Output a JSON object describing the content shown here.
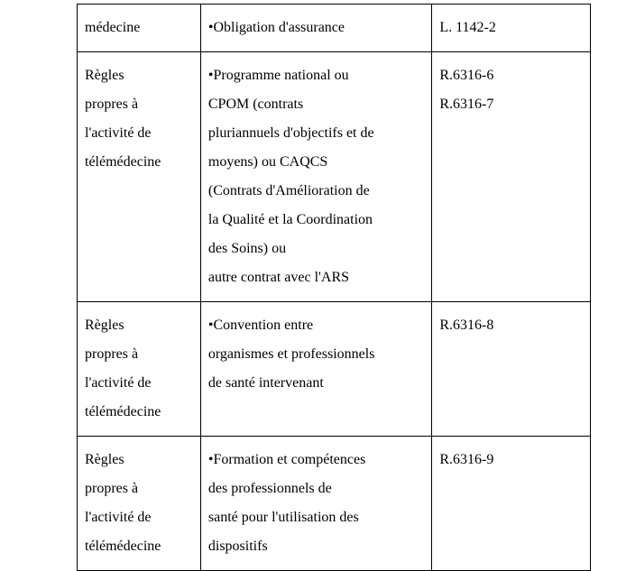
{
  "table": {
    "rows": [
      {
        "col1": "médecine",
        "col2_bullet": "•",
        "col2": "Obligation d'assurance",
        "col3": "L. 1142-2"
      },
      {
        "col1_l1": "Règles",
        "col1_l2": "propres à",
        "col1_l3": "l'activité de",
        "col1_l4": "télémédecine",
        "col2_bullet": "•",
        "col2_l1": "Programme national ou",
        "col2_l2": "CPOM (contrats",
        "col2_l3": "pluriannuels d'objectifs et de",
        "col2_l4": "moyens) ou CAQCS",
        "col2_l5": "(Contrats d'Amélioration de",
        "col2_l6": "la Qualité et la Coordination",
        "col2_l7": "des Soins) ou",
        "col2_l8": "autre contrat avec l'ARS",
        "col3_l1": "R.6316-6",
        "col3_l2": "R.6316-7"
      },
      {
        "col1_l1": "Règles",
        "col1_l2": "propres à",
        "col1_l3": "l'activité de",
        "col1_l4": "télémédecine",
        "col2_bullet": "•",
        "col2_l1": "Convention entre",
        "col2_l2": "organismes et professionnels",
        "col2_l3": "de santé intervenant",
        "col3": "R.6316-8"
      },
      {
        "col1_l1": "Règles",
        "col1_l2": "propres à",
        "col1_l3": "l'activité de",
        "col1_l4": "télémédecine",
        "col2_bullet": "•",
        "col2_l1": "Formation et compétences",
        "col2_l2": "des professionnels de",
        "col2_l3": "santé pour l'utilisation des",
        "col2_l4": "dispositifs",
        "col3": "R.6316-9"
      }
    ]
  },
  "styling": {
    "font_family": "Times New Roman",
    "font_size_pt": 12,
    "text_color": "#000000",
    "background_color": "#ffffff",
    "border_color": "#000000",
    "line_height": 2.0
  }
}
